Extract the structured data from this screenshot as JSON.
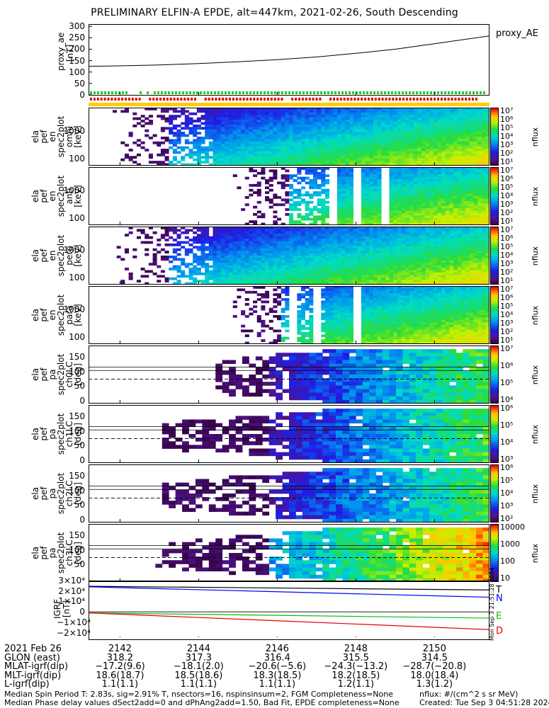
{
  "title": "PRELIMINARY ELFIN-A EPDE, alt=447km, 2021-02-26, South Descending",
  "chart_data": [
    {
      "type": "line",
      "panel": "proxy_ae",
      "ylabel": [
        "proxy_ae",
        "[nT]"
      ],
      "legend": "proxy_AE",
      "ylim": [
        0,
        310
      ],
      "yticks": [
        "300",
        "250",
        "200",
        "150",
        "100",
        "50",
        "0"
      ],
      "x_minutes": [
        2141.2,
        2142,
        2143,
        2144,
        2145,
        2146,
        2147,
        2148,
        2149,
        2150,
        2151.4
      ],
      "values": [
        125,
        127,
        131,
        137,
        145,
        154,
        166,
        182,
        200,
        224,
        258
      ]
    },
    {
      "type": "heatmap",
      "panel": "spec2plot omni",
      "ylabel": [
        "ela",
        "pef",
        "en",
        "spec2plot",
        "omni",
        "[keV]"
      ],
      "yticks": [
        "1000",
        "100"
      ],
      "colorbar": {
        "label": "nflux",
        "ticks": [
          "10⁷",
          "10⁶",
          "10⁵",
          "10⁴",
          "10³",
          "10²",
          "10¹"
        ]
      }
    },
    {
      "type": "heatmap",
      "panel": "spec2plot anti",
      "ylabel": [
        "ela",
        "pef",
        "en",
        "spec2plot",
        "anti",
        "[keV]"
      ],
      "yticks": [
        "1000",
        "100"
      ],
      "colorbar": {
        "label": "nflux",
        "ticks": [
          "10⁷",
          "10⁶",
          "10⁵",
          "10⁴",
          "10³",
          "10²",
          "10¹"
        ]
      }
    },
    {
      "type": "heatmap",
      "panel": "spec2plot perp",
      "ylabel": [
        "ela",
        "pef",
        "en",
        "spec2plot",
        "perp",
        "[keV]"
      ],
      "yticks": [
        "1000",
        "100"
      ],
      "colorbar": {
        "label": "nflux",
        "ticks": [
          "10⁷",
          "10⁶",
          "10⁵",
          "10⁴",
          "10³",
          "10²",
          "10¹"
        ]
      }
    },
    {
      "type": "heatmap",
      "panel": "spec2plot para",
      "ylabel": [
        "ela",
        "pef",
        "en",
        "spec2plot",
        "para",
        "[keV]"
      ],
      "yticks": [
        "1000",
        "100"
      ],
      "colorbar": {
        "label": "nflux",
        "ticks": [
          "10⁷",
          "10⁶",
          "10⁵",
          "10⁴",
          "10³",
          "10²",
          "10¹"
        ]
      }
    },
    {
      "type": "heatmap",
      "panel": "spec2plot ch0LC",
      "ylabel": [
        "ela",
        "pef",
        "pa",
        "spec2plot",
        "ch0LC",
        "[deg]"
      ],
      "yticks": [
        "150",
        "100",
        "50",
        "0"
      ],
      "colorbar": {
        "label": "nflux",
        "ticks": [
          "10⁷",
          "10⁶",
          "10⁵",
          "10⁴"
        ]
      }
    },
    {
      "type": "heatmap",
      "panel": "spec2plot ch1LC",
      "ylabel": [
        "ela",
        "pef",
        "pa",
        "spec2plot",
        "ch1LC",
        "[deg]"
      ],
      "yticks": [
        "150",
        "100",
        "50",
        "0"
      ],
      "colorbar": {
        "label": "nflux",
        "ticks": [
          "10⁶",
          "10⁵",
          "10⁴",
          "10³"
        ]
      }
    },
    {
      "type": "heatmap",
      "panel": "spec2plot ch2LC",
      "ylabel": [
        "ela",
        "pef",
        "pa",
        "spec2plot",
        "ch2LC",
        "[deg]"
      ],
      "yticks": [
        "150",
        "100",
        "50",
        "0"
      ],
      "colorbar": {
        "label": "nflux",
        "ticks": [
          "10⁶",
          "10⁵",
          "10⁴",
          "10³",
          "10²"
        ]
      }
    },
    {
      "type": "heatmap",
      "panel": "spec2plot ch3LC",
      "ylabel": [
        "ela",
        "pef",
        "pa",
        "spec2plot",
        "ch3LC",
        "[deg]"
      ],
      "yticks": [
        "150",
        "100",
        "50"
      ],
      "colorbar": {
        "label": "nflux",
        "ticks": [
          "10000",
          "1000",
          "100",
          "10"
        ]
      }
    },
    {
      "type": "line",
      "panel": "IGRF",
      "ylabel": [
        "IGRF",
        "[nT]"
      ],
      "yticks": [
        "3×10⁴",
        "2×10⁴",
        "1×10⁴",
        "0",
        "−1×10⁴",
        "−2×10⁴"
      ],
      "ylim": [
        -27000,
        30000
      ],
      "x_minutes": [
        2141.2,
        2151.4
      ],
      "series": [
        {
          "name": "T",
          "color": "#000000",
          "values": [
            24500,
            21000
          ]
        },
        {
          "name": "N",
          "color": "#0000ff",
          "values": [
            24000,
            14000
          ]
        },
        {
          "name": "E",
          "color": "#00c000",
          "values": [
            -1000,
            -6000
          ]
        },
        {
          "name": "D",
          "color": "#e00000",
          "values": [
            -1000,
            -17000
          ]
        }
      ]
    }
  ],
  "timestamp_side": "Mon Sep  3 21:51:28 2024",
  "ephemeris": {
    "rows": [
      {
        "label": "2021 Feb 26",
        "values": [
          "2142",
          "2144",
          "2146",
          "2148",
          "2150"
        ]
      },
      {
        "label": "GLON (east)",
        "values": [
          "318.2",
          "317.3",
          "316.4",
          "315.5",
          "314.5"
        ]
      },
      {
        "label": "MLAT-igrf(dip)",
        "values": [
          "−17.2(9.6)",
          "−18.1(2.0)",
          "−20.6(−5.6)",
          "−24.3(−13.2)",
          "−28.7(−20.8)"
        ]
      },
      {
        "label": "MLT-igrf(dip)",
        "values": [
          "18.6(18.7)",
          "18.5(18.6)",
          "18.3(18.5)",
          "18.2(18.5)",
          "18.0(18.4)"
        ]
      },
      {
        "label": "L-igrf(dip)",
        "values": [
          "1.1(1.1)",
          "1.1(1.1)",
          "1.1(1.1)",
          "1.2(1.1)",
          "1.3(1.2)"
        ]
      }
    ]
  },
  "footer": {
    "line1": "Median Spin Period T: 2.83s, sig=2.91% T, nsectors=16, nspinsinsum=2, FGM Completeness=None",
    "line2": "Median Phase delay values dSect2add=0 and dPhAng2add=1.50, Bad Fit, EPDE completeness=None",
    "units": "nflux: #/(cm^2 s sr MeV)",
    "created": "Created: Tue Sep  3 04:51:28 2024"
  },
  "colors": {
    "spec_low": "#3a0a4a",
    "spec_mid": "#00c8e0",
    "spec_high": "#f8f800",
    "flag_green": "#22cc22",
    "flag_red": "#dd0000",
    "flag_yellow": "#ffcc00"
  }
}
